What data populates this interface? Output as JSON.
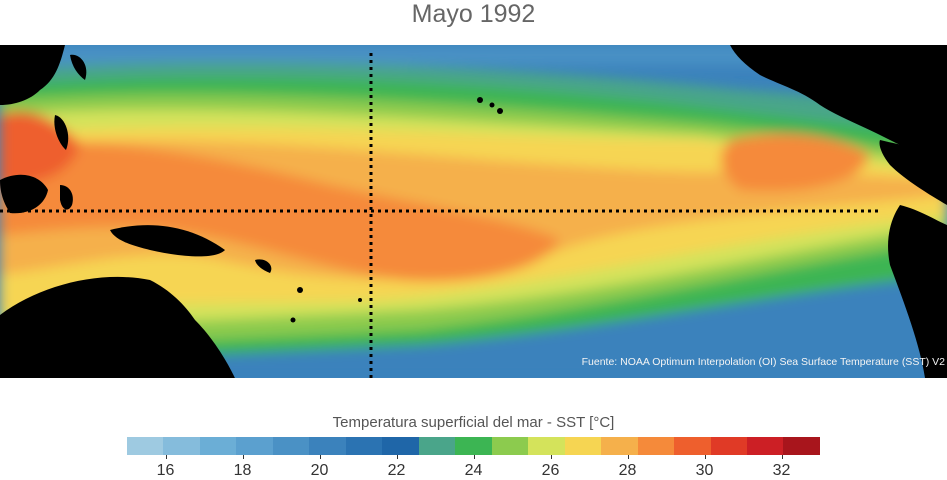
{
  "title": "Mayo 1992",
  "source": "Fuente: NOAA Optimum Interpolation (OI) Sea Surface Temperature (SST) V2",
  "colorbar": {
    "title": "Temperatura superficial del mar - SST  [°C]",
    "min": 15,
    "max": 33,
    "step": 1,
    "colors": [
      "#9ecae1",
      "#85bcdc",
      "#6baed6",
      "#5ba0cf",
      "#4a91c5",
      "#3b82bc",
      "#2b73b2",
      "#1f66a8",
      "#4aa58a",
      "#3cb553",
      "#8ccb4e",
      "#d4e35b",
      "#f6d552",
      "#f5b04b",
      "#f58a3a",
      "#ee5f2d",
      "#e03a26",
      "#cc1f25",
      "#a8151c"
    ],
    "tick_labels": [
      "16",
      "18",
      "20",
      "22",
      "24",
      "26",
      "28",
      "30",
      "32"
    ]
  },
  "map": {
    "type": "sst-heatmap",
    "region": "Tropical Pacific",
    "land_color": "#000000",
    "dotted_lines": [
      "equator",
      "dateline"
    ]
  }
}
